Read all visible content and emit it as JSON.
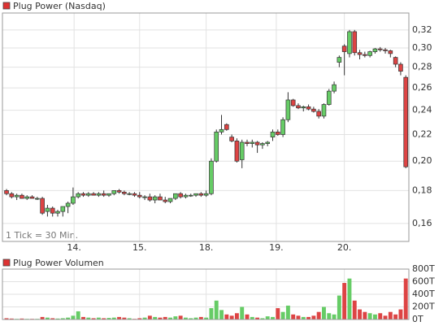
{
  "chart_data": [
    {
      "type": "candlestick",
      "name": "Plug Power (Nasdaq)",
      "legend_color": "#dd3333",
      "annotation": "1 Tick = 30 Min.",
      "up_color": "#66cc66",
      "down_color": "#dd4444",
      "log_scale": true,
      "grid": true,
      "x": [
        0,
        1,
        2,
        3,
        4,
        5,
        6,
        7,
        8,
        9,
        10,
        11,
        12,
        13,
        14,
        15,
        16,
        17,
        18,
        19,
        20,
        21,
        22,
        23,
        24,
        25,
        26,
        27,
        28,
        29,
        30,
        31,
        32,
        33,
        34,
        35,
        36,
        37,
        38,
        39,
        40,
        41,
        42,
        43,
        44,
        45,
        46,
        47,
        48,
        49,
        50,
        51,
        52,
        53,
        54,
        55,
        56,
        57,
        58,
        59,
        60,
        61,
        62,
        63,
        64,
        65,
        66,
        67,
        68,
        69,
        70,
        71,
        72,
        73,
        74,
        75,
        76,
        77,
        78
      ],
      "open": [
        0.18,
        0.178,
        0.176,
        0.177,
        0.175,
        0.176,
        0.175,
        0.175,
        0.167,
        0.169,
        0.166,
        0.167,
        0.17,
        0.172,
        0.176,
        0.178,
        0.177,
        0.178,
        0.177,
        0.178,
        0.177,
        0.178,
        0.18,
        0.179,
        0.178,
        0.178,
        0.177,
        0.176,
        0.176,
        0.174,
        0.176,
        0.174,
        0.173,
        0.175,
        0.178,
        0.176,
        0.177,
        0.177,
        0.178,
        0.177,
        0.178,
        0.2,
        0.222,
        0.228,
        0.218,
        0.215,
        0.201,
        0.214,
        0.213,
        0.214,
        0.212,
        0.213,
        0.218,
        0.222,
        0.22,
        0.232,
        0.249,
        0.244,
        0.242,
        0.243,
        0.241,
        0.239,
        0.235,
        0.245,
        0.257,
        0.285,
        0.302,
        0.294,
        0.318,
        0.295,
        0.293,
        0.292,
        0.296,
        0.299,
        0.298,
        0.297,
        0.29,
        0.283,
        0.27
      ],
      "high": [
        0.181,
        0.179,
        0.178,
        0.178,
        0.177,
        0.177,
        0.176,
        0.176,
        0.171,
        0.17,
        0.168,
        0.17,
        0.173,
        0.182,
        0.179,
        0.179,
        0.179,
        0.179,
        0.179,
        0.18,
        0.178,
        0.18,
        0.181,
        0.18,
        0.179,
        0.179,
        0.179,
        0.177,
        0.178,
        0.177,
        0.178,
        0.176,
        0.175,
        0.178,
        0.179,
        0.178,
        0.178,
        0.178,
        0.179,
        0.18,
        0.202,
        0.224,
        0.236,
        0.229,
        0.22,
        0.217,
        0.216,
        0.216,
        0.216,
        0.215,
        0.214,
        0.215,
        0.224,
        0.224,
        0.234,
        0.256,
        0.25,
        0.246,
        0.244,
        0.245,
        0.243,
        0.241,
        0.246,
        0.259,
        0.266,
        0.292,
        0.304,
        0.32,
        0.32,
        0.298,
        0.296,
        0.297,
        0.3,
        0.301,
        0.3,
        0.298,
        0.291,
        0.285,
        0.272
      ],
      "low": [
        0.177,
        0.175,
        0.174,
        0.175,
        0.174,
        0.175,
        0.174,
        0.165,
        0.164,
        0.164,
        0.164,
        0.164,
        0.166,
        0.171,
        0.175,
        0.176,
        0.176,
        0.177,
        0.176,
        0.176,
        0.176,
        0.177,
        0.178,
        0.177,
        0.177,
        0.176,
        0.175,
        0.174,
        0.173,
        0.172,
        0.174,
        0.172,
        0.172,
        0.174,
        0.175,
        0.175,
        0.176,
        0.176,
        0.176,
        0.176,
        0.177,
        0.199,
        0.22,
        0.223,
        0.214,
        0.199,
        0.195,
        0.211,
        0.21,
        0.206,
        0.209,
        0.211,
        0.215,
        0.219,
        0.218,
        0.23,
        0.243,
        0.241,
        0.239,
        0.24,
        0.238,
        0.233,
        0.233,
        0.244,
        0.255,
        0.28,
        0.272,
        0.29,
        0.292,
        0.288,
        0.29,
        0.29,
        0.294,
        0.296,
        0.294,
        0.29,
        0.28,
        0.272,
        0.195
      ],
      "close": [
        0.178,
        0.176,
        0.177,
        0.175,
        0.176,
        0.175,
        0.175,
        0.166,
        0.169,
        0.166,
        0.167,
        0.17,
        0.172,
        0.176,
        0.178,
        0.177,
        0.178,
        0.177,
        0.178,
        0.177,
        0.178,
        0.18,
        0.179,
        0.178,
        0.178,
        0.177,
        0.176,
        0.176,
        0.174,
        0.176,
        0.174,
        0.173,
        0.175,
        0.178,
        0.176,
        0.177,
        0.177,
        0.178,
        0.177,
        0.178,
        0.2,
        0.222,
        0.224,
        0.224,
        0.215,
        0.2,
        0.214,
        0.213,
        0.214,
        0.212,
        0.213,
        0.214,
        0.222,
        0.22,
        0.232,
        0.249,
        0.244,
        0.242,
        0.243,
        0.241,
        0.239,
        0.235,
        0.245,
        0.257,
        0.263,
        0.29,
        0.296,
        0.318,
        0.295,
        0.293,
        0.292,
        0.296,
        0.299,
        0.298,
        0.297,
        0.294,
        0.283,
        0.276,
        0.196
      ],
      "xlim": [
        -0.8,
        78.6
      ],
      "xticks": [
        {
          "value": 13.2,
          "label": "14."
        },
        {
          "value": 26,
          "label": "15."
        },
        {
          "value": 39,
          "label": "18."
        },
        {
          "value": 52.7,
          "label": "19."
        },
        {
          "value": 66,
          "label": "20."
        }
      ],
      "ylim": [
        0.15,
        0.34
      ],
      "yticks": [
        {
          "value": 0.16,
          "label": "0,16"
        },
        {
          "value": 0.18,
          "label": "0,18"
        },
        {
          "value": 0.2,
          "label": "0,20"
        },
        {
          "value": 0.22,
          "label": "0,22"
        },
        {
          "value": 0.24,
          "label": "0,24"
        },
        {
          "value": 0.26,
          "label": "0,26"
        },
        {
          "value": 0.28,
          "label": "0,28"
        },
        {
          "value": 0.3,
          "label": "0,30"
        },
        {
          "value": 0.32,
          "label": "0,32"
        }
      ]
    },
    {
      "type": "bar",
      "name": "Plug Power Volumen",
      "legend_color": "#dd3333",
      "values": [
        20,
        15,
        10,
        15,
        10,
        10,
        10,
        40,
        30,
        20,
        15,
        20,
        30,
        60,
        130,
        40,
        30,
        20,
        30,
        20,
        25,
        30,
        40,
        30,
        20,
        10,
        20,
        30,
        60,
        40,
        30,
        40,
        30,
        50,
        60,
        30,
        20,
        30,
        40,
        30,
        180,
        300,
        150,
        80,
        60,
        100,
        200,
        80,
        40,
        30,
        20,
        50,
        40,
        180,
        120,
        220,
        80,
        60,
        40,
        40,
        60,
        120,
        200,
        100,
        80,
        380,
        580,
        650,
        300,
        160,
        120,
        100,
        80,
        100,
        60,
        120,
        80,
        160,
        650
      ],
      "ylim": [
        0,
        800
      ],
      "yticks": [
        {
          "value": 0,
          "label": "0T"
        },
        {
          "value": 200,
          "label": "200T"
        },
        {
          "value": 400,
          "label": "400T"
        },
        {
          "value": 600,
          "label": "600T"
        },
        {
          "value": 800,
          "label": "800T"
        }
      ]
    }
  ]
}
